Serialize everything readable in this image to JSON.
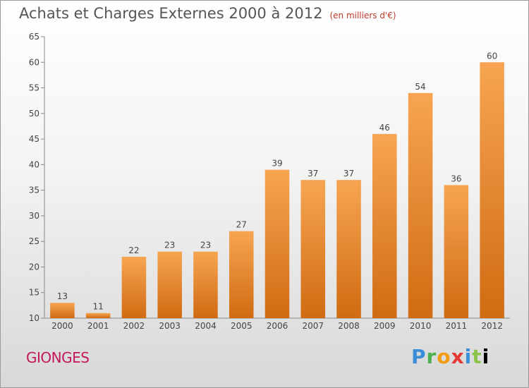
{
  "chart_data": {
    "type": "bar",
    "title": "Achats et Charges Externes 2000 à 2012",
    "subtitle": "(en milliers d'€)",
    "categories": [
      "2000",
      "2001",
      "2002",
      "2003",
      "2004",
      "2005",
      "2006",
      "2007",
      "2008",
      "2009",
      "2010",
      "2011",
      "2012"
    ],
    "values": [
      13,
      11,
      22,
      23,
      23,
      27,
      39,
      37,
      37,
      46,
      54,
      36,
      60
    ],
    "ylim": [
      10,
      65
    ],
    "yticks": [
      10,
      15,
      20,
      25,
      30,
      35,
      40,
      45,
      50,
      55,
      60,
      65
    ],
    "grid": false,
    "bar_color_top": "#f7a552",
    "bar_color_bottom": "#d06b12"
  },
  "footer": {
    "city": "GIONGES",
    "logo": "Proxiti"
  }
}
